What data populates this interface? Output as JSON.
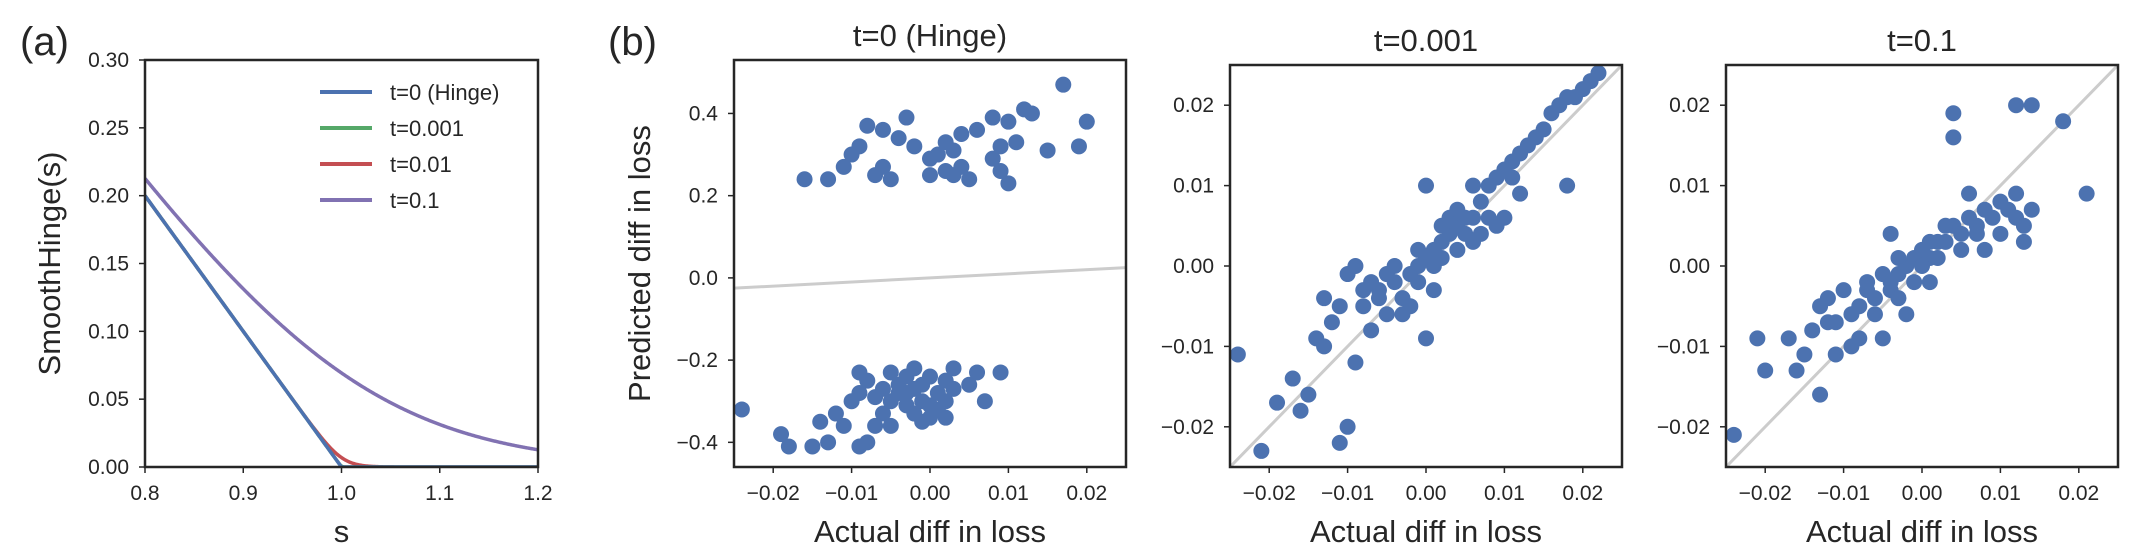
{
  "figure": {
    "panel_labels": [
      "(a)",
      "(b)"
    ]
  },
  "colors": {
    "blue": "#4c72b0",
    "green": "#55a868",
    "red": "#c44e52",
    "purple": "#8172b2",
    "reference_line": "#cccccc",
    "axis": "#262626"
  },
  "chart_data": [
    {
      "id": "a",
      "type": "line",
      "title": "",
      "xlabel": "s",
      "ylabel": "SmoothHinge(s)",
      "xlim": [
        0.8,
        1.2
      ],
      "ylim": [
        0.0,
        0.3
      ],
      "xticks": [
        0.8,
        0.9,
        1.0,
        1.1,
        1.2
      ],
      "xtick_labels": [
        "0.8",
        "0.9",
        "1.0",
        "1.1",
        "1.2"
      ],
      "yticks": [
        0.0,
        0.05,
        0.1,
        0.15,
        0.2,
        0.25,
        0.3
      ],
      "ytick_labels": [
        "0.00",
        "0.05",
        "0.10",
        "0.15",
        "0.20",
        "0.25",
        "0.30"
      ],
      "legend_position": "upper right",
      "grid": false,
      "series": [
        {
          "name": "t=0 (Hinge)",
          "color": "#4c72b0",
          "t": 0
        },
        {
          "name": "t=0.001",
          "color": "#55a868",
          "t": 0.001
        },
        {
          "name": "t=0.01",
          "color": "#c44e52",
          "t": 0.01
        },
        {
          "name": "t=0.1",
          "color": "#8172b2",
          "t": 0.1
        }
      ]
    },
    {
      "id": "b1",
      "type": "scatter",
      "title": "t=0 (Hinge)",
      "xlabel": "Actual diff in loss",
      "ylabel": "Predicted diff in loss",
      "xlim": [
        -0.025,
        0.025
      ],
      "ylim": [
        -0.46,
        0.53
      ],
      "xticks": [
        -0.02,
        -0.01,
        0.0,
        0.01,
        0.02
      ],
      "xtick_labels": [
        "−0.02",
        "−0.01",
        "0.00",
        "0.01",
        "0.02"
      ],
      "yticks": [
        -0.4,
        -0.2,
        0.0,
        0.2,
        0.4
      ],
      "ytick_labels": [
        "−0.4",
        "−0.2",
        "0.0",
        "0.2",
        "0.4"
      ],
      "grid": false,
      "reference_line": {
        "x": [
          -0.025,
          0.025
        ],
        "y": [
          -0.025,
          0.025
        ]
      },
      "points": [
        [
          0.017,
          0.47
        ],
        [
          0.02,
          0.38
        ],
        [
          0.012,
          0.41
        ],
        [
          0.013,
          0.4
        ],
        [
          0.008,
          0.39
        ],
        [
          0.01,
          0.38
        ],
        [
          0.011,
          0.33
        ],
        [
          0.006,
          0.36
        ],
        [
          0.004,
          0.35
        ],
        [
          0.019,
          0.32
        ],
        [
          0.015,
          0.31
        ],
        [
          0.009,
          0.32
        ],
        [
          0.003,
          0.31
        ],
        [
          0.002,
          0.33
        ],
        [
          -0.002,
          0.32
        ],
        [
          0.001,
          0.3
        ],
        [
          -0.004,
          0.34
        ],
        [
          -0.006,
          0.36
        ],
        [
          -0.003,
          0.39
        ],
        [
          -0.008,
          0.37
        ],
        [
          -0.009,
          0.32
        ],
        [
          -0.01,
          0.3
        ],
        [
          -0.011,
          0.27
        ],
        [
          -0.006,
          0.27
        ],
        [
          -0.005,
          0.24
        ],
        [
          -0.007,
          0.25
        ],
        [
          -0.013,
          0.24
        ],
        [
          -0.016,
          0.24
        ],
        [
          0.0,
          0.25
        ],
        [
          0.002,
          0.26
        ],
        [
          0.003,
          0.25
        ],
        [
          0.004,
          0.27
        ],
        [
          0.005,
          0.24
        ],
        [
          0.009,
          0.26
        ],
        [
          0.01,
          0.23
        ],
        [
          0.008,
          0.29
        ],
        [
          0.0,
          0.29
        ],
        [
          -0.024,
          -0.32
        ],
        [
          -0.019,
          -0.38
        ],
        [
          -0.018,
          -0.41
        ],
        [
          -0.015,
          -0.41
        ],
        [
          -0.013,
          -0.4
        ],
        [
          -0.014,
          -0.35
        ],
        [
          -0.012,
          -0.33
        ],
        [
          -0.011,
          -0.36
        ],
        [
          -0.009,
          -0.41
        ],
        [
          -0.008,
          -0.4
        ],
        [
          -0.007,
          -0.36
        ],
        [
          -0.006,
          -0.33
        ],
        [
          -0.005,
          -0.36
        ],
        [
          -0.005,
          -0.3
        ],
        [
          -0.004,
          -0.28
        ],
        [
          -0.003,
          -0.31
        ],
        [
          -0.002,
          -0.33
        ],
        [
          -0.001,
          -0.35
        ],
        [
          0.0,
          -0.31
        ],
        [
          0.001,
          -0.28
        ],
        [
          0.002,
          -0.25
        ],
        [
          0.003,
          -0.27
        ],
        [
          -0.001,
          -0.26
        ],
        [
          0.0,
          -0.24
        ],
        [
          -0.002,
          -0.22
        ],
        [
          -0.003,
          -0.24
        ],
        [
          -0.005,
          -0.23
        ],
        [
          -0.006,
          -0.27
        ],
        [
          -0.008,
          -0.25
        ],
        [
          -0.009,
          -0.28
        ],
        [
          -0.01,
          -0.3
        ],
        [
          -0.009,
          -0.23
        ],
        [
          -0.004,
          -0.26
        ],
        [
          0.001,
          -0.32
        ],
        [
          0.002,
          -0.34
        ],
        [
          0.0,
          -0.34
        ],
        [
          0.003,
          -0.22
        ],
        [
          0.005,
          -0.26
        ],
        [
          0.006,
          -0.23
        ],
        [
          0.007,
          -0.3
        ],
        [
          0.009,
          -0.23
        ],
        [
          -0.001,
          -0.3
        ],
        [
          -0.002,
          -0.27
        ],
        [
          0.002,
          -0.3
        ],
        [
          -0.003,
          -0.28
        ],
        [
          -0.007,
          -0.29
        ]
      ]
    },
    {
      "id": "b2",
      "type": "scatter",
      "title": "t=0.001",
      "xlabel": "Actual diff in loss",
      "ylabel": "",
      "xlim": [
        -0.025,
        0.025
      ],
      "ylim": [
        -0.025,
        0.025
      ],
      "xticks": [
        -0.02,
        -0.01,
        0.0,
        0.01,
        0.02
      ],
      "xtick_labels": [
        "−0.02",
        "−0.01",
        "0.00",
        "0.01",
        "0.02"
      ],
      "yticks": [
        -0.02,
        -0.01,
        0.0,
        0.01,
        0.02
      ],
      "ytick_labels": [
        "−0.02",
        "−0.01",
        "0.00",
        "0.01",
        "0.02"
      ],
      "grid": false,
      "reference_line": {
        "x": [
          -0.025,
          0.025
        ],
        "y": [
          -0.025,
          0.025
        ]
      },
      "points": [
        [
          -0.024,
          -0.011
        ],
        [
          -0.021,
          -0.023
        ],
        [
          -0.019,
          -0.017
        ],
        [
          -0.017,
          -0.014
        ],
        [
          -0.016,
          -0.018
        ],
        [
          -0.015,
          -0.016
        ],
        [
          -0.014,
          -0.009
        ],
        [
          -0.013,
          -0.004
        ],
        [
          -0.012,
          -0.007
        ],
        [
          -0.011,
          -0.022
        ],
        [
          -0.01,
          -0.02
        ],
        [
          -0.009,
          -0.012
        ],
        [
          -0.008,
          -0.005
        ],
        [
          -0.007,
          -0.008
        ],
        [
          -0.006,
          -0.003
        ],
        [
          -0.005,
          -0.006
        ],
        [
          -0.004,
          -0.002
        ],
        [
          -0.003,
          -0.004
        ],
        [
          -0.002,
          -0.001
        ],
        [
          -0.001,
          0.0
        ],
        [
          0.0,
          0.001
        ],
        [
          0.001,
          0.002
        ],
        [
          0.002,
          0.003
        ],
        [
          0.003,
          0.004
        ],
        [
          0.004,
          0.005
        ],
        [
          0.005,
          0.006
        ],
        [
          0.006,
          0.006
        ],
        [
          0.007,
          0.008
        ],
        [
          0.008,
          0.01
        ],
        [
          0.009,
          0.011
        ],
        [
          0.01,
          0.012
        ],
        [
          0.011,
          0.013
        ],
        [
          0.012,
          0.014
        ],
        [
          0.013,
          0.015
        ],
        [
          0.014,
          0.016
        ],
        [
          0.015,
          0.017
        ],
        [
          0.016,
          0.019
        ],
        [
          0.017,
          0.02
        ],
        [
          0.018,
          0.021
        ],
        [
          0.019,
          0.021
        ],
        [
          0.02,
          0.022
        ],
        [
          0.021,
          0.023
        ],
        [
          0.022,
          0.024
        ],
        [
          -0.009,
          0.0
        ],
        [
          -0.01,
          -0.001
        ],
        [
          -0.008,
          -0.003
        ],
        [
          -0.006,
          -0.004
        ],
        [
          -0.005,
          -0.001
        ],
        [
          -0.004,
          0.0
        ],
        [
          -0.003,
          -0.006
        ],
        [
          -0.002,
          -0.005
        ],
        [
          0.0,
          -0.009
        ],
        [
          0.001,
          -0.003
        ],
        [
          0.002,
          0.001
        ],
        [
          0.003,
          0.006
        ],
        [
          0.004,
          0.002
        ],
        [
          0.005,
          0.004
        ],
        [
          0.006,
          0.003
        ],
        [
          0.007,
          0.004
        ],
        [
          0.008,
          0.006
        ],
        [
          0.009,
          0.005
        ],
        [
          0.01,
          0.006
        ],
        [
          0.011,
          0.011
        ],
        [
          0.012,
          0.009
        ],
        [
          0.006,
          0.01
        ],
        [
          0.0,
          0.01
        ],
        [
          0.002,
          0.005
        ],
        [
          -0.001,
          0.002
        ],
        [
          0.001,
          0.0
        ],
        [
          0.018,
          0.01
        ],
        [
          -0.007,
          -0.002
        ],
        [
          -0.011,
          -0.005
        ],
        [
          -0.013,
          -0.01
        ],
        [
          -0.001,
          -0.002
        ],
        [
          0.004,
          0.007
        ]
      ]
    },
    {
      "id": "b3",
      "type": "scatter",
      "title": "t=0.1",
      "xlabel": "Actual diff in loss",
      "ylabel": "",
      "xlim": [
        -0.025,
        0.025
      ],
      "ylim": [
        -0.025,
        0.025
      ],
      "xticks": [
        -0.02,
        -0.01,
        0.0,
        0.01,
        0.02
      ],
      "xtick_labels": [
        "−0.02",
        "−0.01",
        "0.00",
        "0.01",
        "0.02"
      ],
      "yticks": [
        -0.02,
        -0.01,
        0.0,
        0.01,
        0.02
      ],
      "ytick_labels": [
        "−0.02",
        "−0.01",
        "0.00",
        "0.01",
        "0.02"
      ],
      "grid": false,
      "reference_line": {
        "x": [
          -0.025,
          0.025
        ],
        "y": [
          -0.025,
          0.025
        ]
      },
      "points": [
        [
          -0.024,
          -0.021
        ],
        [
          -0.021,
          -0.009
        ],
        [
          -0.02,
          -0.013
        ],
        [
          -0.017,
          -0.009
        ],
        [
          -0.016,
          -0.013
        ],
        [
          -0.015,
          -0.011
        ],
        [
          -0.014,
          -0.008
        ],
        [
          -0.013,
          -0.005
        ],
        [
          -0.013,
          -0.016
        ],
        [
          -0.012,
          -0.004
        ],
        [
          -0.011,
          -0.007
        ],
        [
          -0.01,
          -0.003
        ],
        [
          -0.009,
          -0.006
        ],
        [
          -0.008,
          -0.005
        ],
        [
          -0.007,
          -0.002
        ],
        [
          -0.006,
          -0.004
        ],
        [
          -0.005,
          -0.001
        ],
        [
          -0.004,
          -0.003
        ],
        [
          -0.003,
          -0.001
        ],
        [
          -0.002,
          0.0
        ],
        [
          -0.001,
          0.001
        ],
        [
          0.0,
          0.002
        ],
        [
          0.001,
          0.001
        ],
        [
          0.002,
          0.003
        ],
        [
          0.003,
          0.003
        ],
        [
          0.004,
          0.005
        ],
        [
          0.005,
          0.004
        ],
        [
          0.006,
          0.006
        ],
        [
          0.007,
          0.005
        ],
        [
          0.008,
          0.007
        ],
        [
          0.009,
          0.006
        ],
        [
          0.01,
          0.008
        ],
        [
          0.011,
          0.007
        ],
        [
          0.012,
          0.006
        ],
        [
          0.013,
          0.005
        ],
        [
          0.014,
          0.007
        ],
        [
          0.012,
          0.02
        ],
        [
          0.014,
          0.02
        ],
        [
          0.018,
          0.018
        ],
        [
          0.021,
          0.009
        ],
        [
          0.004,
          0.016
        ],
        [
          0.004,
          0.019
        ],
        [
          -0.004,
          0.004
        ],
        [
          -0.003,
          0.001
        ],
        [
          -0.006,
          -0.006
        ],
        [
          -0.008,
          -0.009
        ],
        [
          -0.009,
          -0.01
        ],
        [
          -0.011,
          -0.011
        ],
        [
          -0.005,
          -0.009
        ],
        [
          -0.003,
          -0.004
        ],
        [
          -0.001,
          -0.002
        ],
        [
          0.0,
          0.0
        ],
        [
          0.001,
          -0.002
        ],
        [
          0.002,
          0.001
        ],
        [
          0.003,
          0.005
        ],
        [
          0.005,
          0.002
        ],
        [
          0.007,
          0.004
        ],
        [
          0.008,
          0.002
        ],
        [
          0.01,
          0.004
        ],
        [
          0.012,
          0.009
        ],
        [
          0.013,
          0.003
        ],
        [
          0.006,
          0.009
        ],
        [
          -0.002,
          -0.006
        ],
        [
          -0.007,
          -0.003
        ],
        [
          -0.012,
          -0.007
        ],
        [
          0.001,
          0.003
        ],
        [
          -0.004,
          -0.002
        ]
      ]
    }
  ]
}
